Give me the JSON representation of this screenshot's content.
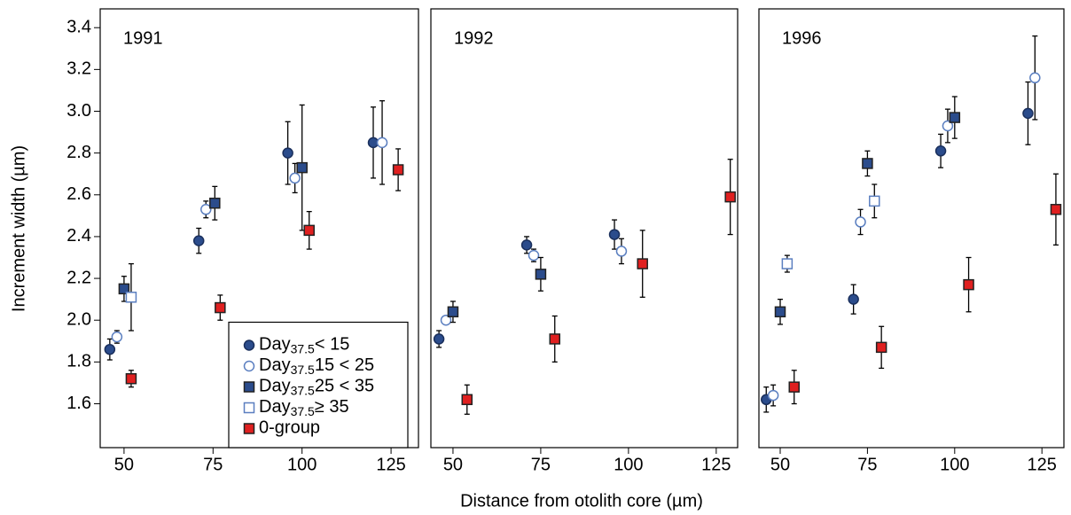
{
  "y_label": "Increment width (µm)",
  "x_label": "Distance from otolith core (µm)",
  "chart_data": [
    {
      "type": "scatter",
      "title": "1991",
      "legend": "bottom right",
      "xlim": [
        43.3,
        132.7
      ],
      "ylim": [
        1.39,
        3.49
      ],
      "xticks": [
        50,
        75,
        100,
        125
      ],
      "yticks": [
        1.6,
        1.8,
        {
          "value": 2,
          "label": "2.0"
        },
        2.2,
        2.4,
        2.6,
        2.8,
        {
          "value": 3,
          "label": "3.0"
        },
        3.2,
        3.4
      ],
      "series": [
        {
          "name": [
            "Day",
            "37.5",
            "< 15"
          ],
          "color": "#2b4c8c",
          "marker": "circle",
          "filled": true,
          "x": [
            46,
            71,
            96,
            120
          ],
          "values": [
            1.86,
            2.38,
            2.8,
            2.85
          ],
          "errors": [
            0.05,
            0.06,
            0.15,
            0.17
          ]
        },
        {
          "name": [
            "Day",
            "37.5",
            "15 < 25"
          ],
          "color": "#5b7fc0",
          "marker": "circle",
          "filled": false,
          "x": [
            48,
            73,
            98,
            122.5
          ],
          "values": [
            1.92,
            2.53,
            2.68,
            2.85
          ],
          "errors": [
            0.03,
            0.04,
            0.07,
            0.2
          ]
        },
        {
          "name": [
            "Day",
            "37.5",
            "25 < 35"
          ],
          "color": "#2b4c8c",
          "marker": "square",
          "filled": true,
          "x": [
            50,
            75.5,
            100
          ],
          "values": [
            2.15,
            2.56,
            2.73
          ],
          "errors": [
            0.06,
            0.08,
            0.3
          ]
        },
        {
          "name": [
            "Day",
            "37.5",
            "≥ 35"
          ],
          "color": "#5b7fc0",
          "marker": "square",
          "filled": false,
          "x": [
            52
          ],
          "values": [
            2.11
          ],
          "errors": [
            0.16
          ]
        },
        {
          "name": [
            "0-group"
          ],
          "color": "#e02020",
          "marker": "square",
          "filled": true,
          "x": [
            52,
            77,
            102,
            127
          ],
          "values": [
            1.72,
            2.06,
            2.43,
            2.72
          ],
          "errors": [
            0.04,
            0.06,
            0.09,
            0.1
          ]
        }
      ]
    },
    {
      "type": "scatter",
      "title": "1992",
      "xlim": [
        43.7,
        131.1
      ],
      "ylim": [
        1.39,
        3.49
      ],
      "xticks": [
        50,
        75,
        100,
        125
      ],
      "series": [
        {
          "color": "#2b4c8c",
          "marker": "circle",
          "filled": true,
          "x": [
            46,
            71,
            96
          ],
          "values": [
            1.91,
            2.36,
            2.41
          ],
          "errors": [
            0.04,
            0.04,
            0.07
          ]
        },
        {
          "color": "#5b7fc0",
          "marker": "circle",
          "filled": false,
          "x": [
            48,
            73,
            98
          ],
          "values": [
            2.0,
            2.31,
            2.33
          ],
          "errors": [
            0.01,
            0.03,
            0.06
          ]
        },
        {
          "color": "#2b4c8c",
          "marker": "square",
          "filled": true,
          "x": [
            50,
            75
          ],
          "values": [
            2.04,
            2.22
          ],
          "errors": [
            0.05,
            0.08
          ]
        },
        {
          "color": "#e02020",
          "marker": "square",
          "filled": true,
          "x": [
            54,
            79,
            104,
            129
          ],
          "values": [
            1.62,
            1.91,
            2.27,
            2.59
          ],
          "errors": [
            0.07,
            0.11,
            0.16,
            0.18
          ]
        }
      ]
    },
    {
      "type": "scatter",
      "title": "1996",
      "xlim": [
        43.9,
        131.3
      ],
      "ylim": [
        1.39,
        3.49
      ],
      "xticks": [
        50,
        75,
        100,
        125
      ],
      "series": [
        {
          "color": "#2b4c8c",
          "marker": "circle",
          "filled": true,
          "x": [
            46,
            71,
            96,
            121
          ],
          "values": [
            1.62,
            2.1,
            2.81,
            2.99
          ],
          "errors": [
            0.06,
            0.07,
            0.08,
            0.15
          ]
        },
        {
          "color": "#5b7fc0",
          "marker": "circle",
          "filled": false,
          "x": [
            48,
            73,
            98,
            123
          ],
          "values": [
            1.64,
            2.47,
            2.93,
            3.16
          ],
          "errors": [
            0.05,
            0.06,
            0.08,
            0.2
          ]
        },
        {
          "color": "#2b4c8c",
          "marker": "square",
          "filled": true,
          "x": [
            50,
            75,
            100
          ],
          "values": [
            2.04,
            2.75,
            2.97
          ],
          "errors": [
            0.06,
            0.06,
            0.1
          ]
        },
        {
          "color": "#5b7fc0",
          "marker": "square",
          "filled": false,
          "x": [
            52,
            77
          ],
          "values": [
            2.27,
            2.57
          ],
          "errors": [
            0.04,
            0.08
          ]
        },
        {
          "color": "#e02020",
          "marker": "square",
          "filled": true,
          "x": [
            54,
            79,
            104,
            129
          ],
          "values": [
            1.68,
            1.87,
            2.17,
            2.53
          ],
          "errors": [
            0.08,
            0.1,
            0.13,
            0.17
          ]
        }
      ]
    }
  ]
}
